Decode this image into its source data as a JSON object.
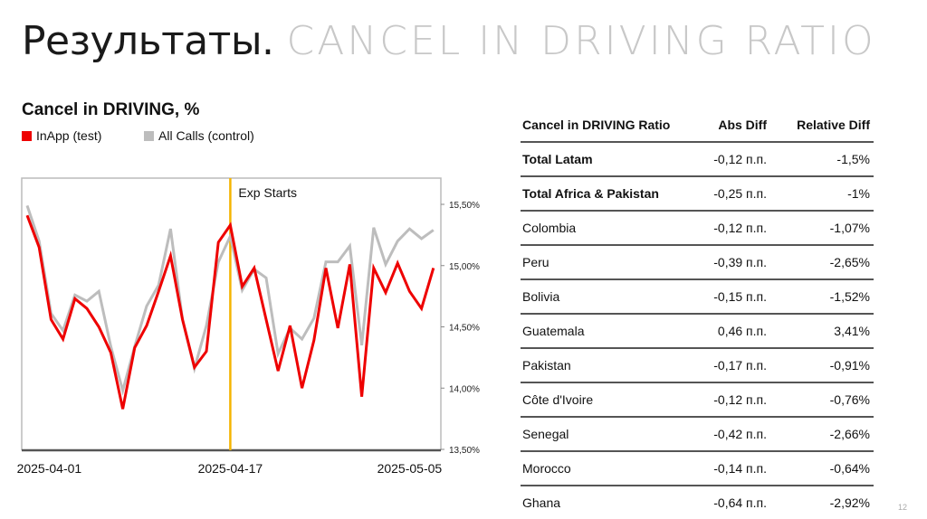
{
  "slide": {
    "title_main": "Результаты.",
    "title_sub": "CANCEL IN DRIVING RATIO",
    "page_number": "12"
  },
  "chart_data": {
    "type": "line",
    "title": "Cancel in DRIVING, %",
    "x": [
      "2025-03-31",
      "2025-04-01",
      "2025-04-02",
      "2025-04-03",
      "2025-04-04",
      "2025-04-05",
      "2025-04-06",
      "2025-04-07",
      "2025-04-08",
      "2025-04-09",
      "2025-04-10",
      "2025-04-11",
      "2025-04-12",
      "2025-04-13",
      "2025-04-14",
      "2025-04-15",
      "2025-04-16",
      "2025-04-17",
      "2025-04-18",
      "2025-04-19",
      "2025-04-20",
      "2025-04-21",
      "2025-04-22",
      "2025-04-23",
      "2025-04-24",
      "2025-04-25",
      "2025-04-26",
      "2025-04-27",
      "2025-04-28",
      "2025-04-29",
      "2025-04-30",
      "2025-05-01",
      "2025-05-02",
      "2025-05-03",
      "2025-05-04"
    ],
    "x_ticks": [
      {
        "label": "2025-04-01",
        "index": 2
      },
      {
        "label": "2025-04-17",
        "index": 17
      },
      {
        "label": "2025-05-05",
        "index": 32
      }
    ],
    "series": [
      {
        "name": "InApp (test)",
        "color": "#ee0000",
        "values": [
          15.41,
          15.15,
          14.56,
          14.4,
          14.73,
          14.65,
          14.5,
          14.29,
          13.83,
          14.33,
          14.51,
          14.79,
          15.08,
          14.56,
          14.17,
          14.3,
          15.19,
          15.33,
          14.83,
          14.98,
          14.56,
          14.14,
          14.51,
          14.0,
          14.39,
          14.98,
          14.49,
          15.01,
          13.93,
          14.98,
          14.78,
          15.02,
          14.79,
          14.65,
          14.98
        ]
      },
      {
        "name": "All Calls (control)",
        "color": "#bdbdbd",
        "values": [
          15.49,
          15.2,
          14.61,
          14.47,
          14.76,
          14.71,
          14.79,
          14.34,
          13.98,
          14.34,
          14.67,
          14.84,
          15.3,
          14.56,
          14.16,
          14.51,
          15.03,
          15.24,
          14.8,
          14.97,
          14.9,
          14.28,
          14.49,
          14.4,
          14.57,
          15.03,
          15.03,
          15.16,
          14.35,
          15.31,
          15.01,
          15.2,
          15.3,
          15.22,
          15.29
        ]
      }
    ],
    "ylim": [
      13.5,
      15.7
    ],
    "y_ticks": [
      "13,50%",
      "14,00%",
      "14,50%",
      "15,00%",
      "15,50%"
    ],
    "y_tick_values": [
      13.5,
      14.0,
      14.5,
      15.0,
      15.5
    ],
    "y_axis_side": "right",
    "annotation": {
      "label": "Exp Starts",
      "index": 17,
      "color": "#f5b400"
    },
    "legend_placement": "top-left",
    "grid": false
  },
  "table": {
    "headers": [
      "Cancel in DRIVING Ratio",
      "Abs Diff",
      "Relative Diff"
    ],
    "rows": [
      {
        "name": "Total Latam",
        "abs": "-0,12 п.п.",
        "rel": "-1,5%",
        "bold": true
      },
      {
        "name": "Total Africa & Pakistan",
        "abs": "-0,25 п.п.",
        "rel": "-1%",
        "bold": true
      },
      {
        "name": "Colombia",
        "abs": "-0,12 п.п.",
        "rel": "-1,07%"
      },
      {
        "name": "Peru",
        "abs": "-0,39 п.п.",
        "rel": "-2,65%"
      },
      {
        "name": "Bolivia",
        "abs": "-0,15 п.п.",
        "rel": "-1,52%"
      },
      {
        "name": "Guatemala",
        "abs": "0,46 п.п.",
        "rel": "3,41%"
      },
      {
        "name": "Pakistan",
        "abs": "-0,17 п.п.",
        "rel": "-0,91%"
      },
      {
        "name": "Côte d'Ivoire",
        "abs": "-0,12 п.п.",
        "rel": "-0,76%"
      },
      {
        "name": "Senegal",
        "abs": "-0,42 п.п.",
        "rel": "-2,66%"
      },
      {
        "name": "Morocco",
        "abs": "-0,14 п.п.",
        "rel": "-0,64%"
      },
      {
        "name": "Ghana",
        "abs": "-0,64 п.п.",
        "rel": "-2,92%"
      }
    ]
  }
}
